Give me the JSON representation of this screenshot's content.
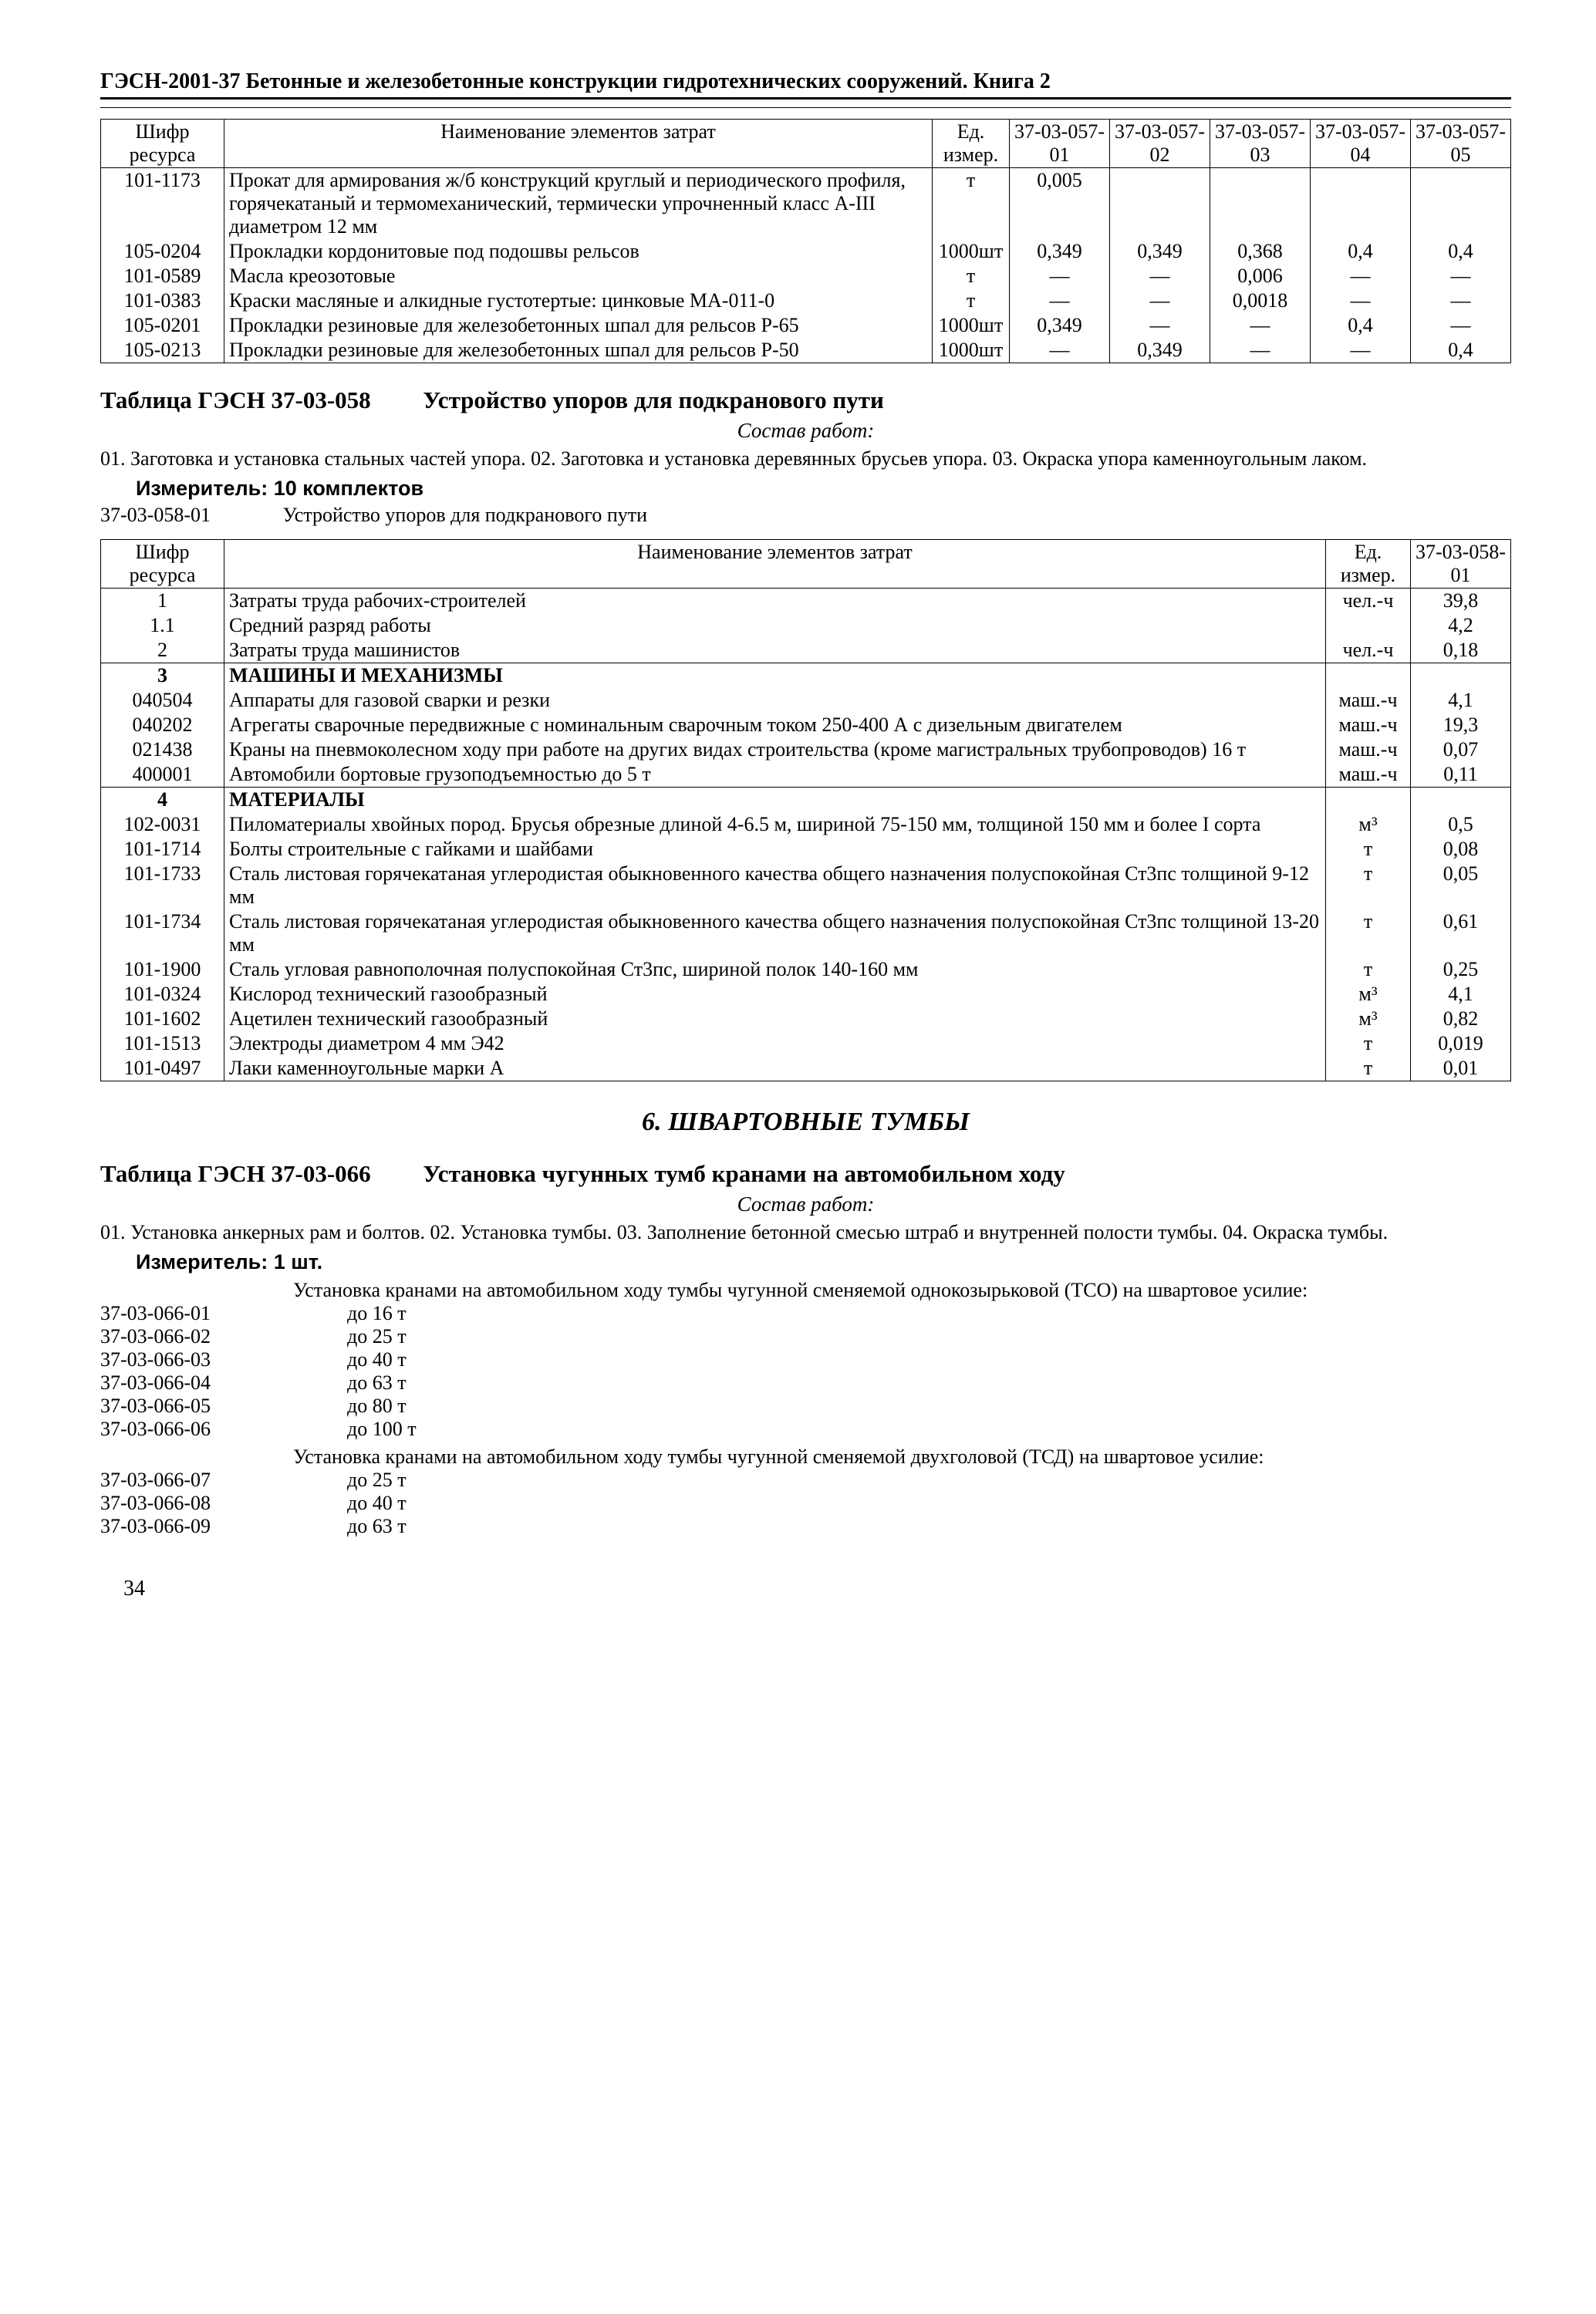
{
  "header": "ГЭСН-2001-37 Бетонные и железобетонные конструкции гидротехнических сооружений. Книга 2",
  "page_number": "34",
  "table1": {
    "head": {
      "c1": "Шифр ресурса",
      "c2": "Наименование элементов затрат",
      "c3": "Ед. измер.",
      "c4": "37-03-057-01",
      "c5": "37-03-057-02",
      "c6": "37-03-057-03",
      "c7": "37-03-057-04",
      "c8": "37-03-057-05"
    },
    "rows": [
      {
        "code": "101-1173",
        "name": "Прокат для армирования ж/б конструкций круглый и периодического профиля, горячекатаный и термомеханический, термически упрочненный класс А-III диаметром 12 мм",
        "unit": "т",
        "v1": "0,005",
        "v2": "",
        "v3": "",
        "v4": "",
        "v5": ""
      },
      {
        "code": "105-0204",
        "name": "Прокладки кордонитовые под подошвы рельсов",
        "unit": "1000шт",
        "v1": "0,349",
        "v2": "0,349",
        "v3": "0,368",
        "v4": "0,4",
        "v5": "0,4"
      },
      {
        "code": "101-0589",
        "name": "Масла креозотовые",
        "unit": "т",
        "v1": "—",
        "v2": "—",
        "v3": "0,006",
        "v4": "—",
        "v5": "—"
      },
      {
        "code": "101-0383",
        "name": "Краски масляные и алкидные густотертые: цинковые МА-011-0",
        "unit": "т",
        "v1": "—",
        "v2": "—",
        "v3": "0,0018",
        "v4": "—",
        "v5": "—"
      },
      {
        "code": "105-0201",
        "name": "Прокладки резиновые для железобетонных шпал для рельсов Р-65",
        "unit": "1000шт",
        "v1": "0,349",
        "v2": "—",
        "v3": "—",
        "v4": "0,4",
        "v5": "—"
      },
      {
        "code": "105-0213",
        "name": "Прокладки резиновые для железобетонных шпал для рельсов Р-50",
        "unit": "1000шт",
        "v1": "—",
        "v2": "0,349",
        "v3": "—",
        "v4": "—",
        "v5": "0,4"
      }
    ]
  },
  "sec058": {
    "title_left": "Таблица ГЭСН 37-03-058",
    "title_right": "Устройство упоров для подкранового пути",
    "sostav_label": "Состав работ:",
    "sostav": "01. Заготовка и установка стальных частей упора. 02. Заготовка и установка деревянных брусьев упора. 03. Окраска упора каменноугольным лаком.",
    "izmer": "Измеритель: 10 комплектов",
    "def_code": "37-03-058-01",
    "def_text": "Устройство упоров для подкранового пути"
  },
  "table2": {
    "head": {
      "c1": "Шифр ресурса",
      "c2": "Наименование элементов затрат",
      "c3": "Ед. измер.",
      "c4": "37-03-058-01"
    },
    "rows": [
      {
        "code": "1",
        "name": "Затраты труда рабочих-строителей",
        "unit": "чел.-ч",
        "v": "39,8",
        "bold": false
      },
      {
        "code": "1.1",
        "name": "Средний разряд работы",
        "unit": "",
        "v": "4,2",
        "bold": false
      },
      {
        "code": "2",
        "name": "Затраты труда машинистов",
        "unit": "чел.-ч",
        "v": "0,18",
        "bold": false
      },
      {
        "code": "3",
        "name": "МАШИНЫ И МЕХАНИЗМЫ",
        "unit": "",
        "v": "",
        "bold": true,
        "section": true
      },
      {
        "code": "040504",
        "name": "Аппараты для газовой сварки и резки",
        "unit": "маш.-ч",
        "v": "4,1",
        "bold": false
      },
      {
        "code": "040202",
        "name": "Агрегаты сварочные передвижные с номинальным сварочным током 250-400 А с дизельным двигателем",
        "unit": "маш.-ч",
        "v": "19,3",
        "bold": false
      },
      {
        "code": "021438",
        "name": "Краны на пневмоколесном ходу при работе на других видах строительства (кроме магистральных трубопроводов) 16 т",
        "unit": "маш.-ч",
        "v": "0,07",
        "bold": false
      },
      {
        "code": "400001",
        "name": "Автомобили бортовые грузоподъемностью до 5 т",
        "unit": "маш.-ч",
        "v": "0,11",
        "bold": false
      },
      {
        "code": "4",
        "name": "МАТЕРИАЛЫ",
        "unit": "",
        "v": "",
        "bold": true,
        "section": true
      },
      {
        "code": "102-0031",
        "name": "Пиломатериалы хвойных пород. Брусья обрезные длиной 4-6.5 м, шириной 75-150 мм, толщиной 150 мм и более I сорта",
        "unit": "м³",
        "v": "0,5",
        "bold": false
      },
      {
        "code": "101-1714",
        "name": "Болты строительные с гайками и шайбами",
        "unit": "т",
        "v": "0,08",
        "bold": false
      },
      {
        "code": "101-1733",
        "name": "Сталь листовая горячекатаная углеродистая обыкновенного качества общего назначения полуспокойная Ст3пс толщиной 9-12 мм",
        "unit": "т",
        "v": "0,05",
        "bold": false
      },
      {
        "code": "101-1734",
        "name": "Сталь листовая горячекатаная углеродистая обыкновенного качества общего назначения полуспокойная Ст3пс толщиной 13-20 мм",
        "unit": "т",
        "v": "0,61",
        "bold": false
      },
      {
        "code": "101-1900",
        "name": "Сталь угловая равнополочная полуспокойная Ст3пс, шириной полок 140-160 мм",
        "unit": "т",
        "v": "0,25",
        "bold": false
      },
      {
        "code": "101-0324",
        "name": "Кислород технический газообразный",
        "unit": "м³",
        "v": "4,1",
        "bold": false
      },
      {
        "code": "101-1602",
        "name": "Ацетилен технический газообразный",
        "unit": "м³",
        "v": "0,82",
        "bold": false
      },
      {
        "code": "101-1513",
        "name": "Электроды диаметром 4 мм Э42",
        "unit": "т",
        "v": "0,019",
        "bold": false
      },
      {
        "code": "101-0497",
        "name": "Лаки каменноугольные марки А",
        "unit": "т",
        "v": "0,01",
        "bold": false
      }
    ]
  },
  "sec6": {
    "title": "6. ШВАРТОВНЫЕ ТУМБЫ"
  },
  "sec066": {
    "title_left": "Таблица ГЭСН 37-03-066",
    "title_right": "Установка чугунных тумб кранами на автомобильном ходу",
    "sostav_label": "Состав работ:",
    "sostav": "01. Установка анкерных рам и болтов. 02. Установка тумбы. 03. Заполнение бетонной смесью штраб и внутренней полости тумбы. 04. Окраска тумбы.",
    "izmer": "Измеритель: 1 шт.",
    "group1_text": "Установка кранами на автомобильном ходу тумбы чугунной сменяемой однокозырьковой (ТСО) на швартовое усилие:",
    "items1": [
      {
        "code": "37-03-066-01",
        "val": "до 16 т"
      },
      {
        "code": "37-03-066-02",
        "val": "до 25 т"
      },
      {
        "code": "37-03-066-03",
        "val": "до 40 т"
      },
      {
        "code": "37-03-066-04",
        "val": "до 63 т"
      },
      {
        "code": "37-03-066-05",
        "val": "до 80 т"
      },
      {
        "code": "37-03-066-06",
        "val": "до 100 т"
      }
    ],
    "group2_text": "Установка кранами на автомобильном ходу тумбы чугунной сменяемой двухголовой (ТСД) на швартовое усилие:",
    "items2": [
      {
        "code": "37-03-066-07",
        "val": "до 25 т"
      },
      {
        "code": "37-03-066-08",
        "val": "до 40 т"
      },
      {
        "code": "37-03-066-09",
        "val": "до 63 т"
      }
    ]
  }
}
